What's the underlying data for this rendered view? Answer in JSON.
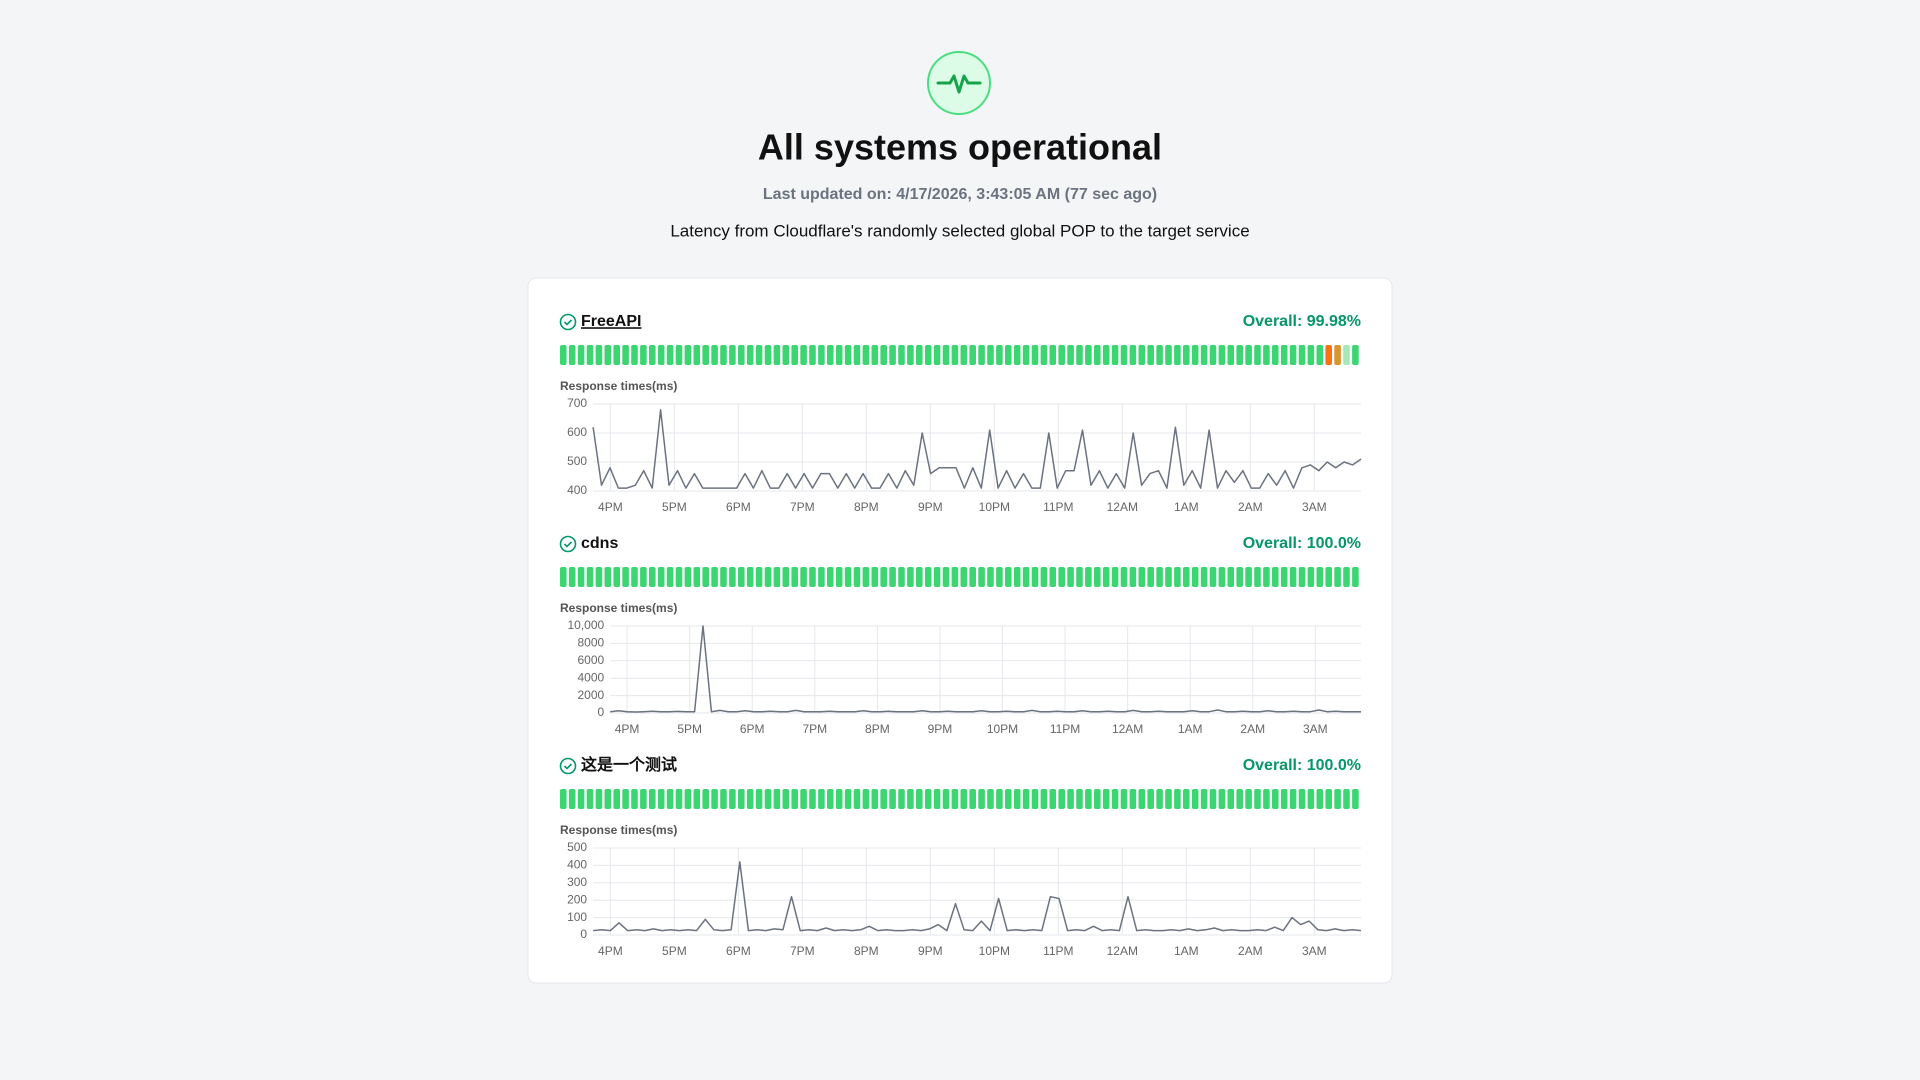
{
  "header": {
    "title": "All systems operational",
    "last_updated": "Last updated on: 4/17/2026, 3:43:05 AM (77 sec ago)",
    "description": "Latency from Cloudflare's randomly selected global POP to the target service"
  },
  "monitors": [
    {
      "name": "FreeAPI",
      "overall": "Overall: 99.98%",
      "status_bars": [
        "#3bd671",
        "#3bd671",
        "#3bd671",
        "#3bd671",
        "#3bd671",
        "#3bd671",
        "#3bd671",
        "#3bd671",
        "#3bd671",
        "#3bd671",
        "#3bd671",
        "#3bd671",
        "#3bd671",
        "#3bd671",
        "#3bd671",
        "#3bd671",
        "#3bd671",
        "#3bd671",
        "#3bd671",
        "#3bd671",
        "#3bd671",
        "#3bd671",
        "#3bd671",
        "#3bd671",
        "#3bd671",
        "#3bd671",
        "#3bd671",
        "#3bd671",
        "#3bd671",
        "#3bd671",
        "#3bd671",
        "#3bd671",
        "#3bd671",
        "#3bd671",
        "#3bd671",
        "#3bd671",
        "#3bd671",
        "#3bd671",
        "#3bd671",
        "#3bd671",
        "#3bd671",
        "#3bd671",
        "#3bd671",
        "#3bd671",
        "#3bd671",
        "#3bd671",
        "#3bd671",
        "#3bd671",
        "#3bd671",
        "#3bd671",
        "#3bd671",
        "#3bd671",
        "#3bd671",
        "#3bd671",
        "#3bd671",
        "#3bd671",
        "#3bd671",
        "#3bd671",
        "#3bd671",
        "#3bd671",
        "#3bd671",
        "#3bd671",
        "#3bd671",
        "#3bd671",
        "#3bd671",
        "#3bd671",
        "#3bd671",
        "#3bd671",
        "#3bd671",
        "#3bd671",
        "#3bd671",
        "#3bd671",
        "#3bd671",
        "#3bd671",
        "#3bd671",
        "#3bd671",
        "#3bd671",
        "#3bd671",
        "#3bd671",
        "#3bd671",
        "#3bd671",
        "#3bd671",
        "#3bd671",
        "#3bd671",
        "#3bd671",
        "#3bd671",
        "#f97316",
        "#d9952f",
        "#a7e8b8",
        "#3bd671"
      ],
      "chart": {
        "type": "line",
        "y_label": "Response times(ms)",
        "ylim": [
          400,
          700
        ],
        "yticks": [
          400,
          500,
          600,
          700
        ],
        "x_labels": [
          "4PM",
          "5PM",
          "6PM",
          "7PM",
          "8PM",
          "9PM",
          "10PM",
          "11PM",
          "12AM",
          "1AM",
          "2AM",
          "3AM"
        ],
        "color": "#6b7280",
        "grid": true,
        "values": [
          620,
          420,
          480,
          410,
          410,
          420,
          470,
          410,
          680,
          420,
          470,
          410,
          460,
          410,
          410,
          410,
          410,
          410,
          460,
          410,
          470,
          410,
          410,
          460,
          410,
          460,
          410,
          460,
          460,
          410,
          460,
          410,
          460,
          410,
          410,
          460,
          410,
          470,
          420,
          600,
          460,
          480,
          480,
          480,
          410,
          480,
          410,
          610,
          410,
          470,
          410,
          460,
          410,
          410,
          600,
          410,
          470,
          470,
          610,
          420,
          470,
          410,
          460,
          410,
          600,
          420,
          460,
          470,
          410,
          620,
          420,
          470,
          410,
          610,
          410,
          470,
          430,
          470,
          410,
          410,
          460,
          420,
          470,
          410,
          480,
          490,
          470,
          500,
          480,
          500,
          490,
          510
        ]
      }
    },
    {
      "name": "cdns",
      "overall": "Overall: 100.0%",
      "status_bars": [
        "#3bd671",
        "#3bd671",
        "#3bd671",
        "#3bd671",
        "#3bd671",
        "#3bd671",
        "#3bd671",
        "#3bd671",
        "#3bd671",
        "#3bd671",
        "#3bd671",
        "#3bd671",
        "#3bd671",
        "#3bd671",
        "#3bd671",
        "#3bd671",
        "#3bd671",
        "#3bd671",
        "#3bd671",
        "#3bd671",
        "#3bd671",
        "#3bd671",
        "#3bd671",
        "#3bd671",
        "#3bd671",
        "#3bd671",
        "#3bd671",
        "#3bd671",
        "#3bd671",
        "#3bd671",
        "#3bd671",
        "#3bd671",
        "#3bd671",
        "#3bd671",
        "#3bd671",
        "#3bd671",
        "#3bd671",
        "#3bd671",
        "#3bd671",
        "#3bd671",
        "#3bd671",
        "#3bd671",
        "#3bd671",
        "#3bd671",
        "#3bd671",
        "#3bd671",
        "#3bd671",
        "#3bd671",
        "#3bd671",
        "#3bd671",
        "#3bd671",
        "#3bd671",
        "#3bd671",
        "#3bd671",
        "#3bd671",
        "#3bd671",
        "#3bd671",
        "#3bd671",
        "#3bd671",
        "#3bd671",
        "#3bd671",
        "#3bd671",
        "#3bd671",
        "#3bd671",
        "#3bd671",
        "#3bd671",
        "#3bd671",
        "#3bd671",
        "#3bd671",
        "#3bd671",
        "#3bd671",
        "#3bd671",
        "#3bd671",
        "#3bd671",
        "#3bd671",
        "#3bd671",
        "#3bd671",
        "#3bd671",
        "#3bd671",
        "#3bd671",
        "#3bd671",
        "#3bd671",
        "#3bd671",
        "#3bd671",
        "#3bd671",
        "#3bd671",
        "#3bd671",
        "#3bd671",
        "#3bd671",
        "#3bd671"
      ],
      "chart": {
        "type": "line",
        "y_label": "Response times(ms)",
        "ylim": [
          0,
          10000
        ],
        "yticks": [
          0,
          2000,
          4000,
          6000,
          8000,
          {
            "value": 10000,
            "label": "10,000"
          }
        ],
        "x_labels": [
          "4PM",
          "5PM",
          "6PM",
          "7PM",
          "8PM",
          "9PM",
          "10PM",
          "11PM",
          "12AM",
          "1AM",
          "2AM",
          "3AM"
        ],
        "color": "#6b7280",
        "grid": true,
        "values": [
          150,
          250,
          150,
          120,
          150,
          200,
          150,
          150,
          180,
          150,
          150,
          10000,
          150,
          300,
          150,
          150,
          250,
          150,
          150,
          200,
          150,
          150,
          300,
          150,
          150,
          150,
          200,
          150,
          150,
          150,
          250,
          150,
          150,
          200,
          150,
          150,
          150,
          250,
          150,
          150,
          200,
          150,
          150,
          150,
          250,
          150,
          150,
          200,
          150,
          150,
          300,
          150,
          150,
          200,
          150,
          150,
          250,
          150,
          150,
          200,
          150,
          150,
          300,
          150,
          150,
          200,
          150,
          150,
          150,
          250,
          150,
          150,
          350,
          150,
          150,
          200,
          150,
          150,
          250,
          150,
          150,
          200,
          150,
          150,
          350,
          150,
          200,
          150,
          150,
          150
        ]
      }
    },
    {
      "name": "这是一个测试",
      "overall": "Overall: 100.0%",
      "status_bars": [
        "#3bd671",
        "#3bd671",
        "#3bd671",
        "#3bd671",
        "#3bd671",
        "#3bd671",
        "#3bd671",
        "#3bd671",
        "#3bd671",
        "#3bd671",
        "#3bd671",
        "#3bd671",
        "#3bd671",
        "#3bd671",
        "#3bd671",
        "#3bd671",
        "#3bd671",
        "#3bd671",
        "#3bd671",
        "#3bd671",
        "#3bd671",
        "#3bd671",
        "#3bd671",
        "#3bd671",
        "#3bd671",
        "#3bd671",
        "#3bd671",
        "#3bd671",
        "#3bd671",
        "#3bd671",
        "#3bd671",
        "#3bd671",
        "#3bd671",
        "#3bd671",
        "#3bd671",
        "#3bd671",
        "#3bd671",
        "#3bd671",
        "#3bd671",
        "#3bd671",
        "#3bd671",
        "#3bd671",
        "#3bd671",
        "#3bd671",
        "#3bd671",
        "#3bd671",
        "#3bd671",
        "#3bd671",
        "#3bd671",
        "#3bd671",
        "#3bd671",
        "#3bd671",
        "#3bd671",
        "#3bd671",
        "#3bd671",
        "#3bd671",
        "#3bd671",
        "#3bd671",
        "#3bd671",
        "#3bd671",
        "#3bd671",
        "#3bd671",
        "#3bd671",
        "#3bd671",
        "#3bd671",
        "#3bd671",
        "#3bd671",
        "#3bd671",
        "#3bd671",
        "#3bd671",
        "#3bd671",
        "#3bd671",
        "#3bd671",
        "#3bd671",
        "#3bd671",
        "#3bd671",
        "#3bd671",
        "#3bd671",
        "#3bd671",
        "#3bd671",
        "#3bd671",
        "#3bd671",
        "#3bd671",
        "#3bd671",
        "#3bd671",
        "#3bd671",
        "#3bd671",
        "#3bd671",
        "#3bd671",
        "#3bd671"
      ],
      "chart": {
        "type": "line",
        "y_label": "Response times(ms)",
        "ylim": [
          0,
          500
        ],
        "yticks": [
          0,
          100,
          200,
          300,
          400,
          500
        ],
        "x_labels": [
          "4PM",
          "5PM",
          "6PM",
          "7PM",
          "8PM",
          "9PM",
          "10PM",
          "11PM",
          "12AM",
          "1AM",
          "2AM",
          "3AM"
        ],
        "color": "#6b7280",
        "grid": true,
        "values": [
          25,
          30,
          25,
          70,
          25,
          30,
          25,
          35,
          25,
          30,
          25,
          30,
          25,
          90,
          30,
          25,
          30,
          420,
          25,
          30,
          25,
          35,
          30,
          220,
          25,
          30,
          25,
          40,
          25,
          30,
          25,
          30,
          50,
          25,
          30,
          25,
          25,
          30,
          25,
          35,
          60,
          25,
          180,
          30,
          25,
          80,
          25,
          210,
          25,
          30,
          25,
          30,
          25,
          220,
          210,
          25,
          30,
          25,
          50,
          25,
          30,
          25,
          220,
          25,
          30,
          25,
          25,
          30,
          25,
          35,
          25,
          30,
          40,
          25,
          30,
          25,
          25,
          30,
          25,
          45,
          25,
          100,
          60,
          80,
          30,
          25,
          35,
          25,
          30,
          25
        ]
      }
    }
  ]
}
